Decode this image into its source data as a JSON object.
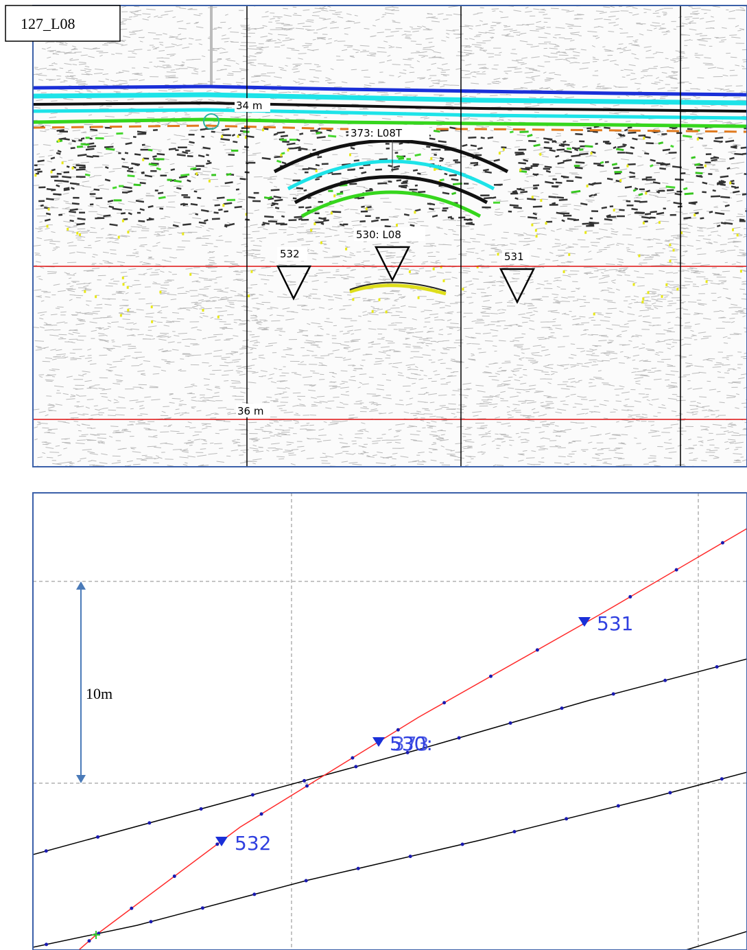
{
  "header": {
    "title": "127_L08"
  },
  "radargram": {
    "depth_labels": [
      "34 m",
      "36 m"
    ],
    "annotations": [
      "373: L08T"
    ],
    "markers": [
      "532",
      "530: L08",
      "531"
    ]
  },
  "map": {
    "scale_label": "10m",
    "markers": [
      "531",
      "530:",
      "373",
      "532"
    ]
  }
}
